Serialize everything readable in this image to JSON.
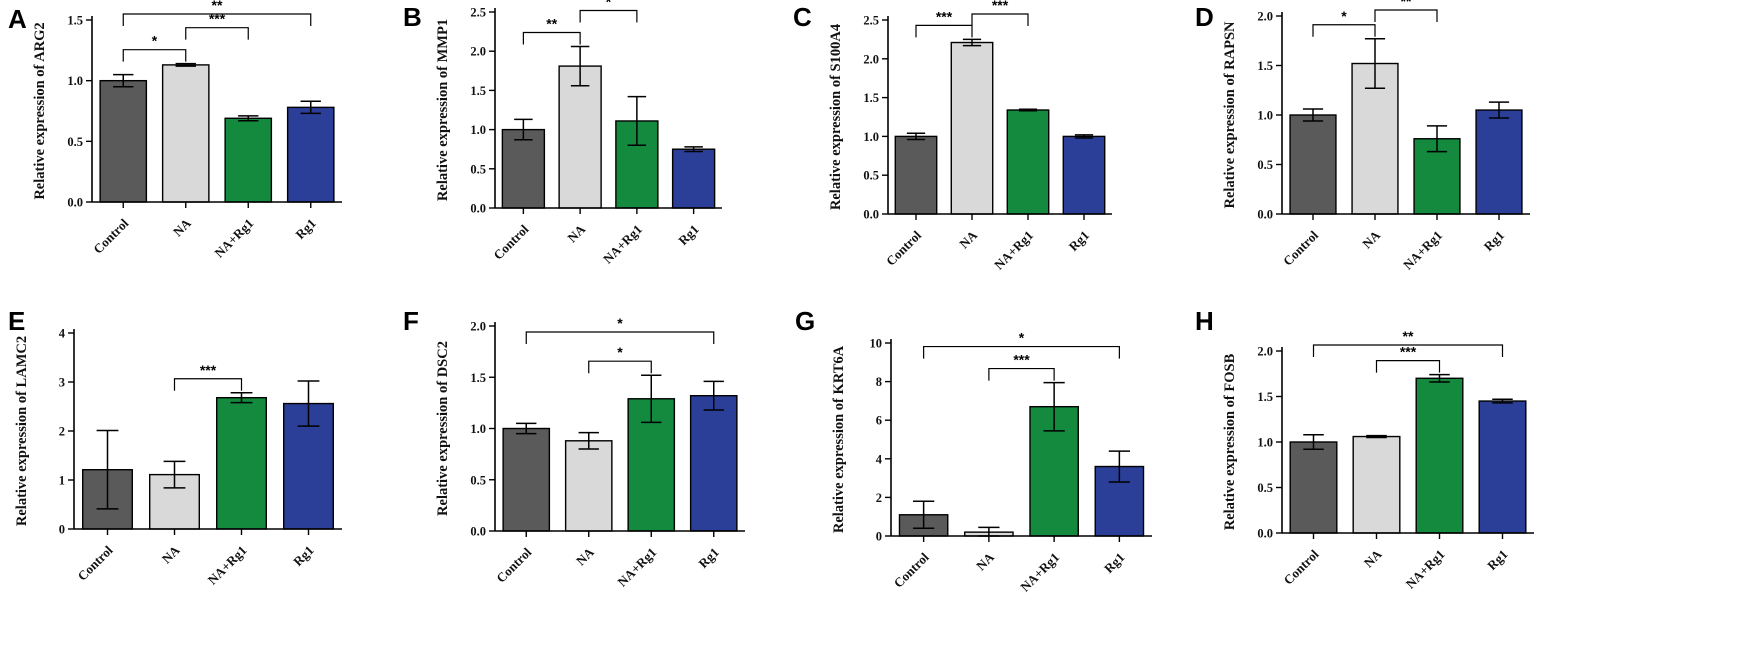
{
  "colors": {
    "control": "#5a5a5a",
    "na": "#d9d9d9",
    "na_rg1": "#138a3e",
    "rg1": "#2b3f98"
  },
  "categories": [
    "Control",
    "NA",
    "NA+Rg1",
    "Rg1"
  ],
  "chart_data": [
    {
      "panel": "A",
      "type": "bar",
      "ylabel": "Relative expression of ARG2",
      "ylim": [
        0,
        1.5
      ],
      "yticks": [
        "0.0",
        "0.5",
        "1.0",
        "1.5"
      ],
      "ytick_values": [
        0,
        0.5,
        1.0,
        1.5
      ],
      "values": [
        1.0,
        1.13,
        0.69,
        0.78
      ],
      "errors": [
        0.05,
        0.01,
        0.02,
        0.05
      ],
      "comparisons": [
        {
          "from": 0,
          "to": 1,
          "label": "*"
        },
        {
          "from": 1,
          "to": 2,
          "label": "***"
        },
        {
          "from": 0,
          "to": 3,
          "label": "**"
        }
      ]
    },
    {
      "panel": "B",
      "type": "bar",
      "ylabel": "Relative expression of MMP1",
      "ylim": [
        0,
        2.5
      ],
      "yticks": [
        "0.0",
        "0.5",
        "1.0",
        "1.5",
        "2.0",
        "2.5"
      ],
      "ytick_values": [
        0,
        0.5,
        1.0,
        1.5,
        2.0,
        2.5
      ],
      "values": [
        1.0,
        1.81,
        1.11,
        0.75
      ],
      "errors": [
        0.13,
        0.25,
        0.31,
        0.03
      ],
      "comparisons": [
        {
          "from": 0,
          "to": 1,
          "label": "**"
        },
        {
          "from": 1,
          "to": 2,
          "label": "*"
        }
      ]
    },
    {
      "panel": "C",
      "type": "bar",
      "ylabel": "Relative expression of S100A4",
      "ylim": [
        0,
        2.5
      ],
      "yticks": [
        "0.0",
        "0.5",
        "1.0",
        "1.5",
        "2.0",
        "2.5"
      ],
      "ytick_values": [
        0,
        0.5,
        1.0,
        1.5,
        2.0,
        2.5
      ],
      "values": [
        1.0,
        2.21,
        1.34,
        1.0
      ],
      "errors": [
        0.04,
        0.04,
        0.01,
        0.02
      ],
      "comparisons": [
        {
          "from": 0,
          "to": 1,
          "label": "***"
        },
        {
          "from": 1,
          "to": 2,
          "label": "***"
        }
      ]
    },
    {
      "panel": "D",
      "type": "bar",
      "ylabel": "Relative expression of RAPSN",
      "ylim": [
        0,
        2.0
      ],
      "yticks": [
        "0.0",
        "0.5",
        "1.0",
        "1.5",
        "2.0"
      ],
      "ytick_values": [
        0,
        0.5,
        1.0,
        1.5,
        2.0
      ],
      "values": [
        1.0,
        1.52,
        0.76,
        1.05
      ],
      "errors": [
        0.06,
        0.25,
        0.13,
        0.08
      ],
      "comparisons": [
        {
          "from": 0,
          "to": 1,
          "label": "*"
        },
        {
          "from": 1,
          "to": 2,
          "label": "**"
        }
      ]
    },
    {
      "panel": "E",
      "type": "bar",
      "ylabel": "Relative expression of LAMC2",
      "ylim": [
        0,
        4
      ],
      "yticks": [
        "0",
        "1",
        "2",
        "3",
        "4"
      ],
      "ytick_values": [
        0,
        1,
        2,
        3,
        4
      ],
      "values": [
        1.21,
        1.11,
        2.68,
        2.56
      ],
      "errors": [
        0.8,
        0.27,
        0.1,
        0.46
      ],
      "comparisons": [
        {
          "from": 1,
          "to": 2,
          "label": "***"
        }
      ]
    },
    {
      "panel": "F",
      "type": "bar",
      "ylabel": "Relative expression of DSC2",
      "ylim": [
        0,
        2.0
      ],
      "yticks": [
        "0.0",
        "0.5",
        "1.0",
        "1.5",
        "2.0"
      ],
      "ytick_values": [
        0,
        0.5,
        1.0,
        1.5,
        2.0
      ],
      "values": [
        1.0,
        0.88,
        1.29,
        1.32
      ],
      "errors": [
        0.05,
        0.08,
        0.23,
        0.14
      ],
      "comparisons": [
        {
          "from": 1,
          "to": 2,
          "label": "*"
        },
        {
          "from": 0,
          "to": 3,
          "label": "*"
        }
      ]
    },
    {
      "panel": "G",
      "type": "bar",
      "ylabel": "Relative expression of KRT6A",
      "ylim": [
        0,
        10
      ],
      "yticks": [
        "0",
        "2",
        "4",
        "6",
        "8",
        "10"
      ],
      "ytick_values": [
        0,
        2,
        4,
        6,
        8,
        10
      ],
      "values": [
        1.1,
        0.2,
        6.7,
        3.6
      ],
      "errors": [
        0.7,
        0.25,
        1.25,
        0.8
      ],
      "comparisons": [
        {
          "from": 1,
          "to": 2,
          "label": "***"
        },
        {
          "from": 0,
          "to": 3,
          "label": "*"
        }
      ]
    },
    {
      "panel": "H",
      "type": "bar",
      "ylabel": "Relative expression of FOSB",
      "ylim": [
        0,
        2.0
      ],
      "yticks": [
        "0.0",
        "0.5",
        "1.0",
        "1.5",
        "2.0"
      ],
      "ytick_values": [
        0,
        0.5,
        1.0,
        1.5,
        2.0
      ],
      "values": [
        1.0,
        1.06,
        1.7,
        1.45
      ],
      "errors": [
        0.08,
        0.01,
        0.04,
        0.02
      ],
      "comparisons": [
        {
          "from": 1,
          "to": 2,
          "label": "***"
        },
        {
          "from": 0,
          "to": 3,
          "label": "**"
        }
      ]
    }
  ]
}
